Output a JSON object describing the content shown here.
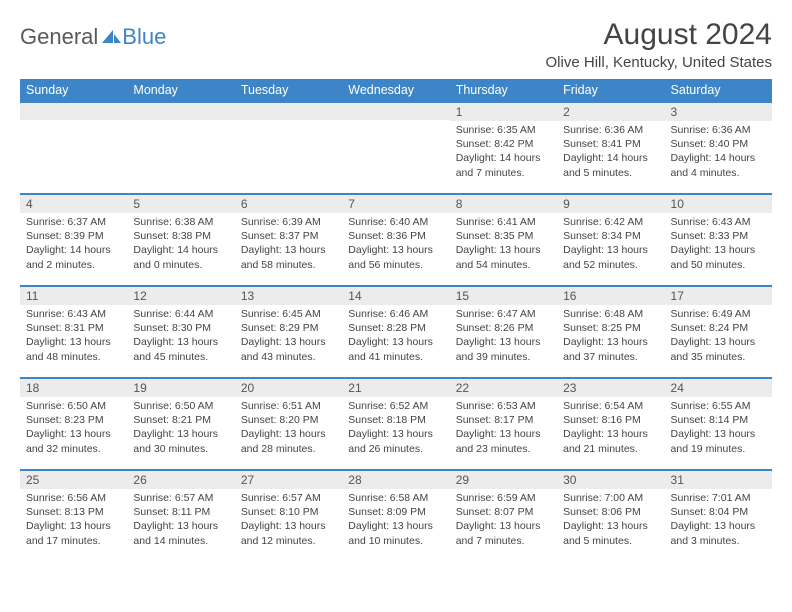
{
  "logo": {
    "part1": "General",
    "part2": "Blue"
  },
  "title": "August 2024",
  "location": "Olive Hill, Kentucky, United States",
  "colors": {
    "header_bg": "#3d85c6",
    "header_text": "#ffffff",
    "daynum_bg": "#ececec",
    "border": "#3d85c6",
    "text": "#444444"
  },
  "day_headers": [
    "Sunday",
    "Monday",
    "Tuesday",
    "Wednesday",
    "Thursday",
    "Friday",
    "Saturday"
  ],
  "weeks": [
    [
      null,
      null,
      null,
      null,
      {
        "n": "1",
        "sr": "6:35 AM",
        "ss": "8:42 PM",
        "dl": "14 hours and 7 minutes."
      },
      {
        "n": "2",
        "sr": "6:36 AM",
        "ss": "8:41 PM",
        "dl": "14 hours and 5 minutes."
      },
      {
        "n": "3",
        "sr": "6:36 AM",
        "ss": "8:40 PM",
        "dl": "14 hours and 4 minutes."
      }
    ],
    [
      {
        "n": "4",
        "sr": "6:37 AM",
        "ss": "8:39 PM",
        "dl": "14 hours and 2 minutes."
      },
      {
        "n": "5",
        "sr": "6:38 AM",
        "ss": "8:38 PM",
        "dl": "14 hours and 0 minutes."
      },
      {
        "n": "6",
        "sr": "6:39 AM",
        "ss": "8:37 PM",
        "dl": "13 hours and 58 minutes."
      },
      {
        "n": "7",
        "sr": "6:40 AM",
        "ss": "8:36 PM",
        "dl": "13 hours and 56 minutes."
      },
      {
        "n": "8",
        "sr": "6:41 AM",
        "ss": "8:35 PM",
        "dl": "13 hours and 54 minutes."
      },
      {
        "n": "9",
        "sr": "6:42 AM",
        "ss": "8:34 PM",
        "dl": "13 hours and 52 minutes."
      },
      {
        "n": "10",
        "sr": "6:43 AM",
        "ss": "8:33 PM",
        "dl": "13 hours and 50 minutes."
      }
    ],
    [
      {
        "n": "11",
        "sr": "6:43 AM",
        "ss": "8:31 PM",
        "dl": "13 hours and 48 minutes."
      },
      {
        "n": "12",
        "sr": "6:44 AM",
        "ss": "8:30 PM",
        "dl": "13 hours and 45 minutes."
      },
      {
        "n": "13",
        "sr": "6:45 AM",
        "ss": "8:29 PM",
        "dl": "13 hours and 43 minutes."
      },
      {
        "n": "14",
        "sr": "6:46 AM",
        "ss": "8:28 PM",
        "dl": "13 hours and 41 minutes."
      },
      {
        "n": "15",
        "sr": "6:47 AM",
        "ss": "8:26 PM",
        "dl": "13 hours and 39 minutes."
      },
      {
        "n": "16",
        "sr": "6:48 AM",
        "ss": "8:25 PM",
        "dl": "13 hours and 37 minutes."
      },
      {
        "n": "17",
        "sr": "6:49 AM",
        "ss": "8:24 PM",
        "dl": "13 hours and 35 minutes."
      }
    ],
    [
      {
        "n": "18",
        "sr": "6:50 AM",
        "ss": "8:23 PM",
        "dl": "13 hours and 32 minutes."
      },
      {
        "n": "19",
        "sr": "6:50 AM",
        "ss": "8:21 PM",
        "dl": "13 hours and 30 minutes."
      },
      {
        "n": "20",
        "sr": "6:51 AM",
        "ss": "8:20 PM",
        "dl": "13 hours and 28 minutes."
      },
      {
        "n": "21",
        "sr": "6:52 AM",
        "ss": "8:18 PM",
        "dl": "13 hours and 26 minutes."
      },
      {
        "n": "22",
        "sr": "6:53 AM",
        "ss": "8:17 PM",
        "dl": "13 hours and 23 minutes."
      },
      {
        "n": "23",
        "sr": "6:54 AM",
        "ss": "8:16 PM",
        "dl": "13 hours and 21 minutes."
      },
      {
        "n": "24",
        "sr": "6:55 AM",
        "ss": "8:14 PM",
        "dl": "13 hours and 19 minutes."
      }
    ],
    [
      {
        "n": "25",
        "sr": "6:56 AM",
        "ss": "8:13 PM",
        "dl": "13 hours and 17 minutes."
      },
      {
        "n": "26",
        "sr": "6:57 AM",
        "ss": "8:11 PM",
        "dl": "13 hours and 14 minutes."
      },
      {
        "n": "27",
        "sr": "6:57 AM",
        "ss": "8:10 PM",
        "dl": "13 hours and 12 minutes."
      },
      {
        "n": "28",
        "sr": "6:58 AM",
        "ss": "8:09 PM",
        "dl": "13 hours and 10 minutes."
      },
      {
        "n": "29",
        "sr": "6:59 AM",
        "ss": "8:07 PM",
        "dl": "13 hours and 7 minutes."
      },
      {
        "n": "30",
        "sr": "7:00 AM",
        "ss": "8:06 PM",
        "dl": "13 hours and 5 minutes."
      },
      {
        "n": "31",
        "sr": "7:01 AM",
        "ss": "8:04 PM",
        "dl": "13 hours and 3 minutes."
      }
    ]
  ],
  "labels": {
    "sunrise": "Sunrise: ",
    "sunset": "Sunset: ",
    "daylight": "Daylight: "
  }
}
